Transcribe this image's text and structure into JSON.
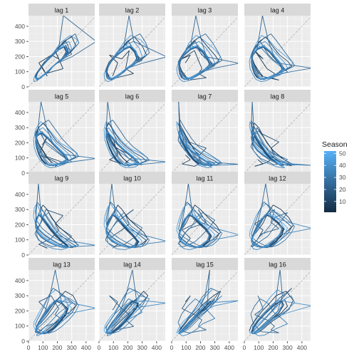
{
  "chart_data": {
    "type": "line",
    "title": "",
    "xlabel": "",
    "ylabel": "",
    "facet_labels": [
      "lag 1",
      "lag 2",
      "lag 3",
      "lag 4",
      "lag 5",
      "lag 6",
      "lag 7",
      "lag 8",
      "lag 9",
      "lag 10",
      "lag 11",
      "lag 12",
      "lag 13",
      "lag 14",
      "lag 15",
      "lag 16"
    ],
    "xlim": [
      0,
      460
    ],
    "ylim": [
      0,
      470
    ],
    "x_ticks": [
      0,
      100,
      200,
      300,
      400
    ],
    "y_ticks": [
      0,
      100,
      200,
      300,
      400
    ],
    "x_tick_labels": [
      "0",
      "100",
      "200",
      "300",
      "400"
    ],
    "y_tick_labels": [
      "0",
      "100",
      "200",
      "300",
      "400"
    ],
    "reference_line": "y = x (dashed)",
    "grid": true,
    "legend": {
      "title": "Season",
      "position": "right",
      "color_scale": {
        "low": "#132B43",
        "high": "#56B1F7"
      },
      "range": [
        1,
        52
      ],
      "breaks": [
        10,
        20,
        30,
        40,
        50
      ],
      "break_labels": [
        "10",
        "20",
        "30",
        "40",
        "50"
      ]
    },
    "series": {
      "values": [
        95,
        130,
        72,
        158,
        210,
        185,
        240,
        120,
        88,
        60,
        45,
        70,
        110,
        165,
        205,
        260,
        300,
        215,
        175,
        140,
        98,
        75,
        55,
        62,
        90,
        125,
        180,
        230,
        280,
        250,
        190,
        150,
        115,
        80,
        58,
        40,
        35,
        50,
        85,
        120,
        170,
        220,
        290,
        340,
        310,
        255,
        200,
        160,
        130,
        100,
        70,
        52,
        68,
        105,
        150,
        195,
        245,
        300,
        330,
        270,
        210,
        170,
        135,
        105,
        80,
        60,
        48,
        58,
        95,
        140,
        185,
        235,
        285,
        325,
        350,
        290,
        225,
        175,
        140,
        110,
        85,
        64,
        52,
        66,
        100,
        145,
        190,
        240,
        280,
        300,
        255,
        200,
        160,
        125,
        95,
        72,
        56,
        49,
        62,
        92,
        135,
        180,
        220,
        260,
        275,
        230,
        185,
        150,
        118,
        90,
        70,
        55,
        50,
        60,
        88,
        128,
        172,
        215,
        250,
        265,
        240,
        195,
        155,
        122,
        94,
        72,
        57,
        50,
        62,
        90,
        132,
        175,
        212,
        245,
        262,
        228,
        184,
        148,
        116,
        90,
        71,
        57,
        52,
        64,
        95,
        138,
        182,
        224,
        258,
        270,
        236,
        190,
        152,
        120,
        92,
        70,
        56,
        49,
        61,
        89,
        130,
        174,
        214,
        248,
        264,
        232,
        186,
        148,
        116,
        89,
        69,
        55,
        48,
        60,
        87,
        126,
        168,
        208,
        242,
        470,
        300,
        198,
        156,
        124,
        96,
        74,
        58,
        51,
        63,
        91,
        133,
        176,
        218,
        252,
        268,
        234,
        188,
        150,
        118,
        91,
        70,
        56,
        49,
        61
      ]
    }
  }
}
